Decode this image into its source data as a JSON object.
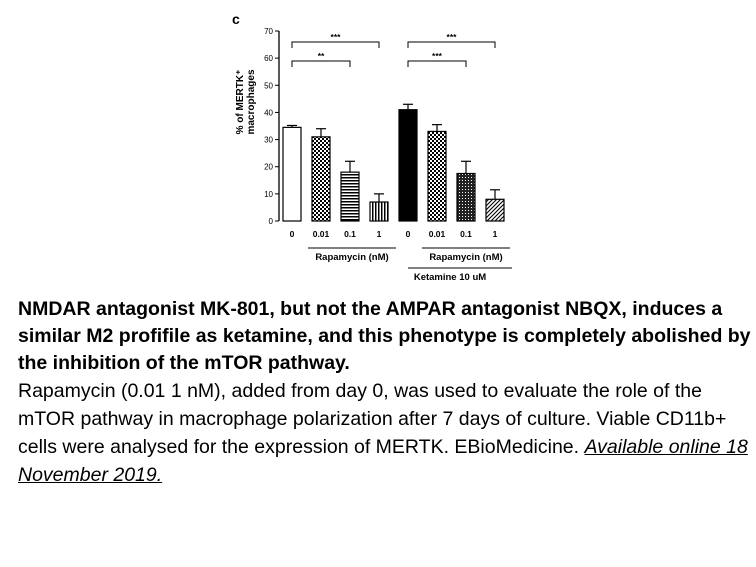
{
  "chart_data": {
    "type": "bar",
    "panel_label": "c",
    "ylabel_line1": "% of MERTK⁺",
    "ylabel_line2": "macrophages",
    "ylim": [
      0,
      70
    ],
    "yticks": [
      "0",
      "10",
      "20",
      "30",
      "40",
      "50",
      "60",
      "70"
    ],
    "categories": [
      "0",
      "0.01",
      "0.1",
      "1",
      "0",
      "0.01",
      "0.1",
      "1"
    ],
    "values": [
      34.5,
      31,
      18,
      7,
      41,
      33,
      17.5,
      8
    ],
    "errors": [
      0.7,
      3,
      4,
      3,
      2,
      2.5,
      4.5,
      3.5
    ],
    "fills": [
      "white",
      "check",
      "hlines",
      "vlines",
      "black",
      "check",
      "dots",
      "diag"
    ],
    "group_label_1": "Rapamycin (nM)",
    "group_label_2": "Rapamycin (nM)",
    "group_label_3": "Ketamine 10 uM",
    "significance": [
      {
        "from": 0,
        "to": 3,
        "label": "***"
      },
      {
        "from": 0,
        "to": 2,
        "label": "**"
      },
      {
        "from": 4,
        "to": 7,
        "label": "***"
      },
      {
        "from": 4,
        "to": 6,
        "label": "***"
      }
    ]
  },
  "caption": {
    "title": "NMDAR antagonist MK-801, but not the AMPAR antagonist NBQX, induces a similar M2 profifile as ketamine, and this phenotype is completely abolished by the inhibition of the mTOR pathway.",
    "body": "Rapamycin (0.01 1 nM), added from day 0, was used to evaluate the role of the mTOR pathway in macrophage polarization after 7 days of culture. Viable CD11b+ cells were analysed for the expression of MERTK. EBioMedicine.",
    "link": "Available online 18 November 2019."
  }
}
